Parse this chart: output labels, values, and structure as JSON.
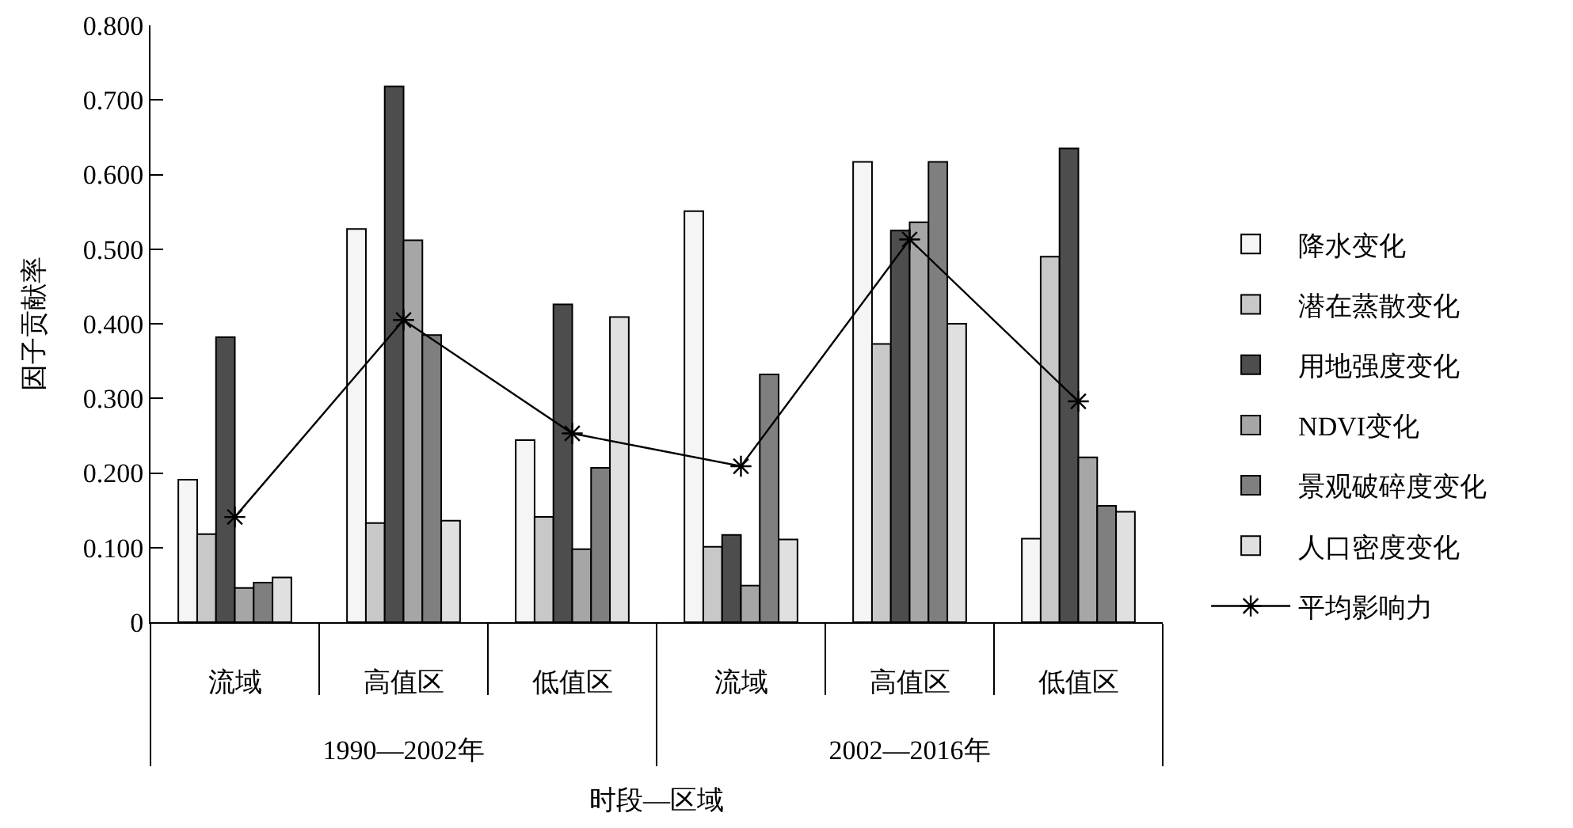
{
  "chart_data": {
    "type": "bar",
    "xlabel": "时段—区域",
    "ylabel": "因子贡献率",
    "categories": [
      "流域",
      "高值区",
      "低值区",
      "流域",
      "高值区",
      "低值区"
    ],
    "annotations": [
      "1990—2002年",
      "2002—2016年"
    ],
    "ylim": [
      0,
      0.8
    ],
    "yticks": [
      0,
      {
        "value": 0.1,
        "label": "0.100"
      },
      {
        "value": 0.2,
        "label": "0.200"
      },
      {
        "value": 0.3,
        "label": "0.300"
      },
      {
        "value": 0.4,
        "label": "0.400"
      },
      {
        "value": 0.5,
        "label": "0.500"
      },
      {
        "value": 0.6,
        "label": "0.600"
      },
      {
        "value": 0.7,
        "label": "0.700"
      },
      {
        "value": 0.8,
        "label": "0.800"
      }
    ],
    "series": [
      {
        "name": "降水变化",
        "color": "#f5f5f5",
        "values": [
          0.191,
          0.527,
          0.244,
          0.551,
          0.617,
          0.112
        ]
      },
      {
        "name": "潜在蒸散变化",
        "color": "#c8c8c8",
        "values": [
          0.118,
          0.133,
          0.141,
          0.101,
          0.373,
          0.49
        ]
      },
      {
        "name": "用地强度变化",
        "color": "#4d4d4d",
        "values": [
          0.382,
          0.718,
          0.426,
          0.117,
          0.525,
          0.635
        ]
      },
      {
        "name": "NDVI变化",
        "color": "#a6a6a6",
        "values": [
          0.046,
          0.512,
          0.098,
          0.049,
          0.536,
          0.221
        ]
      },
      {
        "name": "景观破碎度变化",
        "color": "#7f7f7f",
        "values": [
          0.053,
          0.385,
          0.207,
          0.332,
          0.617,
          0.156
        ]
      },
      {
        "name": "人口密度变化",
        "color": "#e0e0e0",
        "values": [
          0.06,
          0.136,
          0.409,
          0.111,
          0.4,
          0.148
        ]
      },
      {
        "name": "平均影响力",
        "type": "line",
        "color": "#000000",
        "values": [
          0.141,
          0.405,
          0.253,
          0.209,
          0.513,
          0.296
        ]
      }
    ],
    "marker": "cross",
    "legend": "right"
  }
}
